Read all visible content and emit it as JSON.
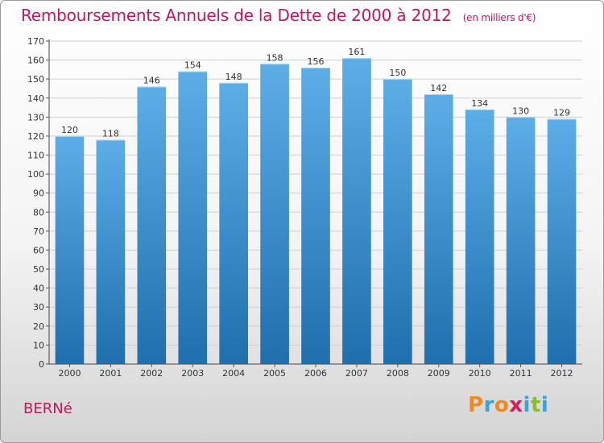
{
  "header": {
    "title": "Remboursements Annuels de la Dette de 2000 à 2012",
    "unit": "(en milliers d'€)"
  },
  "footer": {
    "commune": "BERNé",
    "logo_letters": [
      "P",
      "r",
      "o",
      "x",
      "i",
      "t",
      "i"
    ]
  },
  "colors": {
    "title": "#c2185b",
    "bar_top": "#5dade7",
    "bar_bottom": "#1f6fae",
    "logo": [
      "#f08a1c",
      "#3aa3d8",
      "#f08a1c",
      "#d81b60",
      "#3aa3d8",
      "#8bbf2a",
      "#3aa3d8"
    ]
  },
  "chart_data": {
    "type": "bar",
    "categories": [
      "2000",
      "2001",
      "2002",
      "2003",
      "2004",
      "2005",
      "2006",
      "2007",
      "2008",
      "2009",
      "2010",
      "2011",
      "2012"
    ],
    "values": [
      120,
      118,
      146,
      154,
      148,
      158,
      156,
      161,
      150,
      142,
      134,
      130,
      129
    ],
    "data_labels": [
      "120",
      "118",
      "146",
      "154",
      "148",
      "158",
      "156",
      "161",
      "150",
      "142",
      "134",
      "130",
      "129"
    ],
    "ylim": [
      0,
      170
    ],
    "yticks": [
      0,
      10,
      20,
      30,
      40,
      50,
      60,
      70,
      80,
      90,
      100,
      110,
      120,
      130,
      140,
      150,
      160,
      170
    ],
    "grid": true,
    "xlabel": "",
    "ylabel": ""
  }
}
